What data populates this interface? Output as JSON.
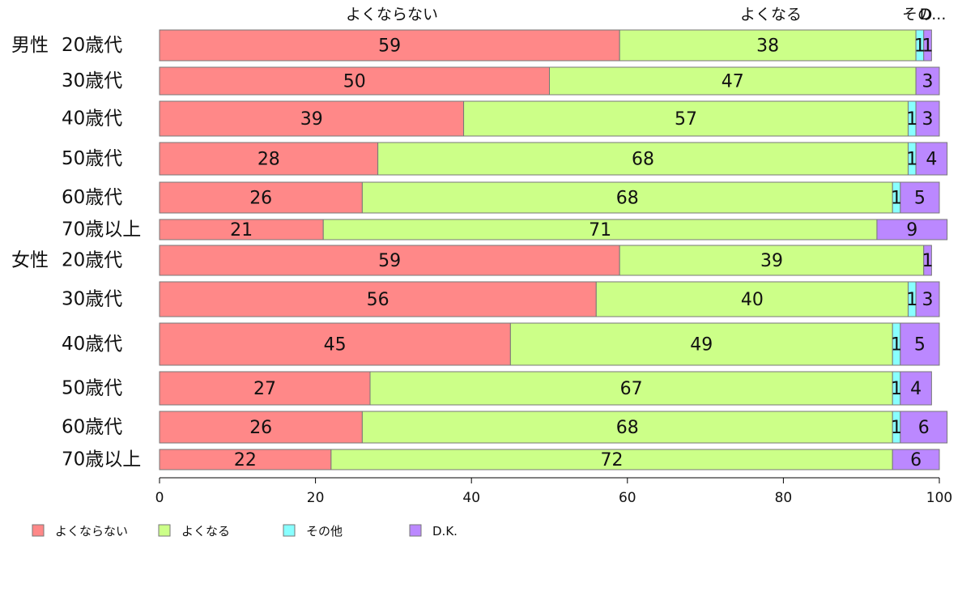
{
  "chart_data": {
    "type": "bar",
    "orientation": "horizontal",
    "stacked": true,
    "xlim": [
      0,
      100
    ],
    "xticks": [
      0,
      20,
      40,
      60,
      80,
      100
    ],
    "grid": false,
    "legend_position": "bottom-left",
    "groups": [
      {
        "label": "男性",
        "first_row": 0
      },
      {
        "label": "女性",
        "first_row": 6
      }
    ],
    "categories": [
      "20歳代",
      "30歳代",
      "40歳代",
      "50歳代",
      "60歳代",
      "70歳以上",
      "20歳代",
      "30歳代",
      "40歳代",
      "50歳代",
      "60歳代",
      "70歳以上"
    ],
    "series": [
      {
        "name": "よくならない",
        "color": "#ff8888",
        "values": [
          59,
          50,
          39,
          28,
          26,
          21,
          59,
          56,
          45,
          27,
          26,
          22
        ]
      },
      {
        "name": "よくなる",
        "color": "#ccff88",
        "values": [
          38,
          47,
          57,
          68,
          68,
          71,
          39,
          40,
          49,
          67,
          68,
          72
        ]
      },
      {
        "name": "その他",
        "color": "#88ffff",
        "values": [
          1,
          0,
          1,
          1,
          1,
          0,
          0,
          1,
          1,
          1,
          1,
          0
        ]
      },
      {
        "name": "D.K.",
        "color": "#bb88ff",
        "values": [
          1,
          3,
          3,
          4,
          5,
          9,
          1,
          3,
          5,
          4,
          6,
          6
        ]
      }
    ],
    "segment_labels": [
      [
        "59",
        "38",
        "1",
        "1"
      ],
      [
        "50",
        "47",
        "",
        "3"
      ],
      [
        "39",
        "57",
        "1",
        "3"
      ],
      [
        "28",
        "68",
        "1",
        "4"
      ],
      [
        "26",
        "68",
        "1",
        "5"
      ],
      [
        "21",
        "71",
        "",
        "9"
      ],
      [
        "59",
        "39",
        "",
        "1"
      ],
      [
        "56",
        "40",
        "1",
        "3"
      ],
      [
        "45",
        "49",
        "1",
        "5"
      ],
      [
        "27",
        "67",
        "1",
        "4"
      ],
      [
        "26",
        "68",
        "1",
        "6"
      ],
      [
        "22",
        "72",
        "",
        "6"
      ]
    ],
    "top_labels": [
      "よくならない",
      "よくなる",
      "その",
      "D..."
    ]
  }
}
